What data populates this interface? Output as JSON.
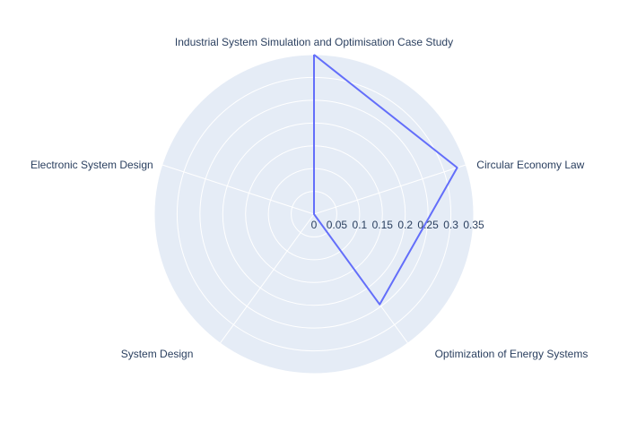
{
  "chart_data": {
    "type": "radar",
    "categories": [
      "Industrial System Simulation and Optimisation Case Study",
      "Circular Economy Law",
      "Optimization of Energy Systems",
      "System Design",
      "Electronic System Design"
    ],
    "values": [
      0.35,
      0.33,
      0.245,
      0,
      0
    ],
    "radial_ticks": [
      "0",
      "0.05",
      "0.1",
      "0.15",
      "0.2",
      "0.25",
      "0.3",
      "0.35"
    ],
    "radial_tick_values": [
      0,
      0.05,
      0.1,
      0.15,
      0.2,
      0.25,
      0.3,
      0.35
    ],
    "rlim": [
      0,
      0.35
    ],
    "grid": true,
    "colors": {
      "polar_bg": "#e5ecf6",
      "grid": "#ffffff",
      "line": "#636efa",
      "text": "#2a3f5f"
    }
  }
}
